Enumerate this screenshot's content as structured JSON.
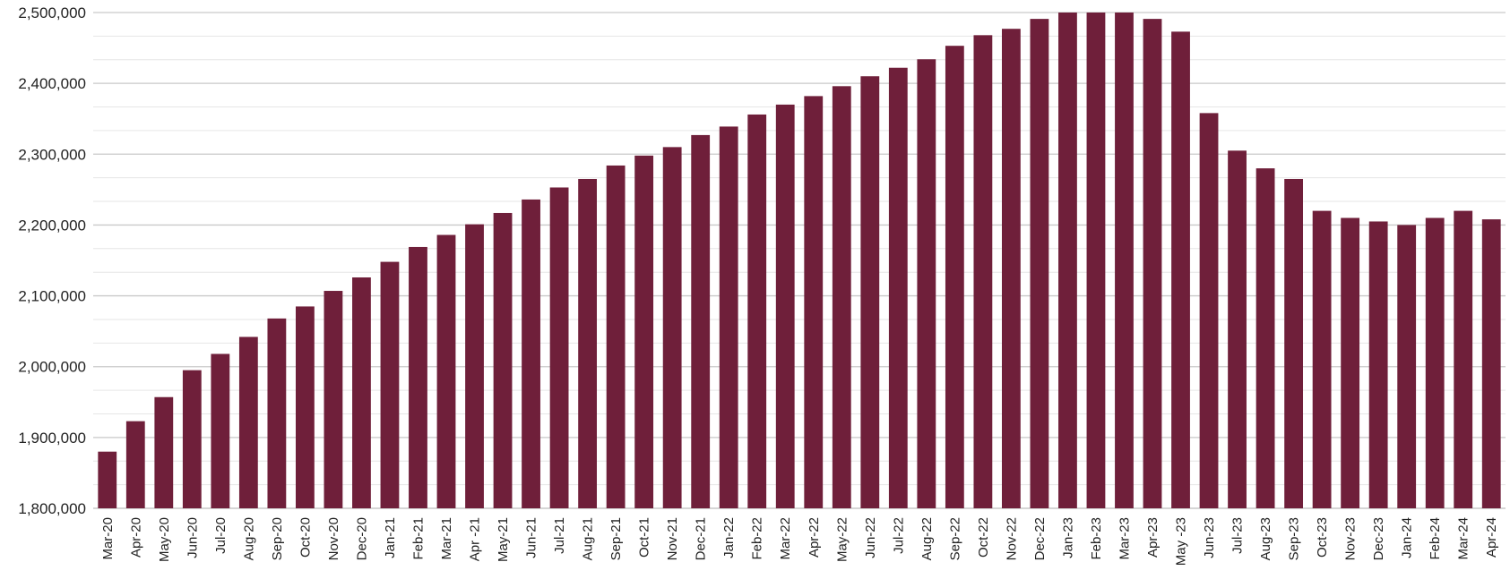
{
  "chart_data": {
    "type": "bar",
    "title": "",
    "xlabel": "",
    "ylabel": "",
    "ylim": [
      1800000,
      2500000
    ],
    "y_ticks": [
      1800000,
      1900000,
      2000000,
      2100000,
      2200000,
      2300000,
      2400000,
      2500000
    ],
    "y_tick_labels": [
      "1,800,000",
      "1,900,000",
      "2,000,000",
      "2,100,000",
      "2,200,000",
      "2,300,000",
      "2,400,000",
      "2,500,000"
    ],
    "minor_grid_step": 33333,
    "grid": true,
    "legend": "none",
    "bar_color": "#6f1f3a",
    "categories": [
      "Mar-20",
      "Apr-20",
      "May-20",
      "Jun-20",
      "Jul-20",
      "Aug-20",
      "Sep-20",
      "Oct-20",
      "Nov-20",
      "Dec-20",
      "Jan-21",
      "Feb-21",
      "Mar-21",
      "Apr -21",
      "May-21",
      "Jun-21",
      "Jul-21",
      "Aug-21",
      "Sep-21",
      "Oct-21",
      "Nov-21",
      "Dec-21",
      "Jan-22",
      "Feb-22",
      "Mar-22",
      "Apr-22",
      "May-22",
      "Jun-22",
      "Jul-22",
      "Aug-22",
      "Sep-22",
      "Oct-22",
      "Nov-22",
      "Dec-22",
      "Jan-23",
      "Feb-23",
      "Mar-23",
      "Apr-23",
      "May -23",
      "Jun-23",
      "Jul-23",
      "Aug-23",
      "Sep-23",
      "Oct-23",
      "Nov-23",
      "Dec-23",
      "Jan-24",
      "Feb-24",
      "Mar-24",
      "Apr-24"
    ],
    "values": [
      1880000,
      1923000,
      1957000,
      1995000,
      2018000,
      2042000,
      2068000,
      2085000,
      2107000,
      2126000,
      2148000,
      2169000,
      2186000,
      2201000,
      2217000,
      2236000,
      2253000,
      2265000,
      2284000,
      2298000,
      2310000,
      2327000,
      2339000,
      2356000,
      2370000,
      2382000,
      2396000,
      2410000,
      2422000,
      2434000,
      2453000,
      2468000,
      2477000,
      2491000,
      2502000,
      2502000,
      2502000,
      2491000,
      2473000,
      2358000,
      2305000,
      2280000,
      2265000,
      2220000,
      2210000,
      2205000,
      2200000,
      2210000,
      2220000,
      2208000
    ]
  }
}
